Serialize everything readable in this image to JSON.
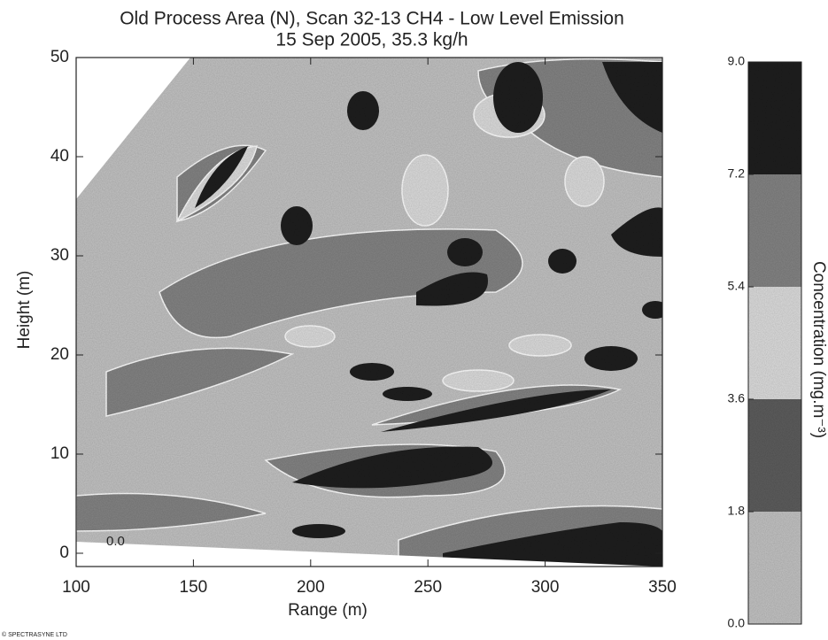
{
  "chart_data": {
    "type": "contour",
    "title": "Old Process Area (N), Scan 32-13 CH4 - Low Level Emission",
    "subtitle": "15 Sep 2005, 35.3 kg/h",
    "xlabel": "Range (m)",
    "ylabel": "Height (m)",
    "xlim": [
      100,
      350
    ],
    "xticks": [
      100,
      150,
      200,
      250,
      300,
      350
    ],
    "ylim": [
      0,
      50
    ],
    "yticks": [
      0,
      10,
      20,
      30,
      40,
      50
    ],
    "contour_labels": [
      {
        "value": 0,
        "label": "0.0"
      }
    ],
    "colorbar": {
      "label": "Concentration (mg.m⁻³)",
      "levels": [
        {
          "value": 0,
          "label": "0.0"
        },
        {
          "value": 1.8,
          "label": "1.8"
        },
        {
          "value": 3.6,
          "label": "3.6"
        },
        {
          "value": 5.4,
          "label": "5.4"
        },
        {
          "value": 7.2,
          "label": "7.2"
        },
        {
          "value": 9,
          "label": "9.0"
        }
      ],
      "colors": [
        "#c4c4c4",
        "#5e5e5e",
        "#dedede",
        "#858585",
        "#222222"
      ]
    },
    "source": "© SPECTRASYNE LTD"
  }
}
